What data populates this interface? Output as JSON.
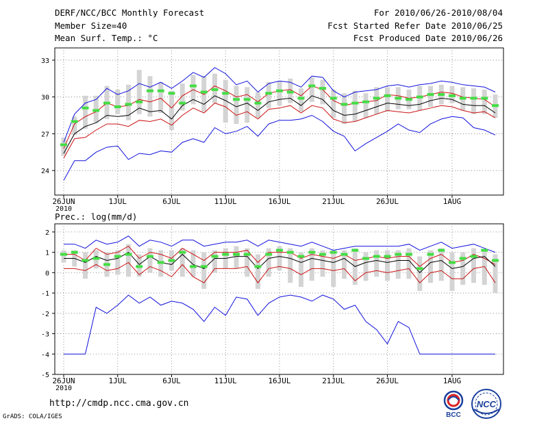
{
  "header": {
    "title": "DERF/NCC/BCC Monthly Forecast",
    "member_size": "Member Size=40",
    "variable": "Mean Surf. Temp.: °C",
    "period": "For 2010/06/26-2010/08/04",
    "refer_date": "Fcst Started Refer Date 2010/06/25",
    "produced_date": "Fcst Produced Date 2010/06/26"
  },
  "footer": {
    "url": "http://cmdp.ncc.cma.gov.cn",
    "grads": "GrADS: COLA/IGES",
    "bcc_logo_text": "BCC",
    "ncc_logo_text": "NCC"
  },
  "colors": {
    "box": "#d4d4d4",
    "median": "#44dd44",
    "mean": "#000000",
    "range": "#1010dd",
    "spread": "#cc1111",
    "grid": "#777777"
  },
  "chart_data": [
    {
      "type": "line",
      "title": "Mean Surf. Temp.: °C",
      "xlabel": "",
      "ylabel": "°C",
      "ylim": [
        22,
        34
      ],
      "yticks": [
        24,
        27,
        30,
        33
      ],
      "xtick_labels": [
        "26JUN",
        "1JUL",
        "6JUL",
        "11JUL",
        "16JUL",
        "21JUL",
        "26JUL",
        "1AUG"
      ],
      "xtick_days": [
        0,
        5,
        10,
        15,
        20,
        25,
        30,
        36
      ],
      "xtick_year": "2010",
      "grid": true,
      "days": 40,
      "series": [
        {
          "name": "max",
          "color_key": "range",
          "values": [
            23.2,
            24.8,
            24.8,
            25.5,
            25.9,
            26.0,
            24.9,
            25.4,
            25.3,
            25.6,
            25.5,
            26.3,
            26.6,
            26.3,
            27.5,
            27.0,
            27.2,
            27.6,
            26.8,
            27.8,
            28.1,
            28.1,
            28.2,
            28.5,
            28.0,
            27.2,
            26.8,
            25.6,
            26.2,
            26.7,
            27.2,
            27.8,
            27.3,
            27.1,
            27.8,
            28.2,
            28.4,
            28.3,
            27.5,
            27.3,
            26.9
          ]
        },
        {
          "name": "top-max",
          "color_key": "range",
          "values": [
            26.3,
            28.6,
            29.5,
            29.8,
            30.7,
            30.2,
            30.5,
            31.1,
            30.8,
            31.2,
            30.7,
            31.3,
            32.0,
            31.6,
            32.4,
            31.9,
            31.0,
            31.3,
            30.4,
            31.1,
            31.3,
            31.2,
            30.8,
            31.7,
            31.6,
            30.5,
            30.0,
            30.4,
            30.5,
            30.6,
            30.9,
            31.0,
            30.8,
            31.0,
            31.1,
            31.3,
            31.2,
            31.0,
            30.9,
            30.8,
            30.4
          ]
        },
        {
          "name": "upper",
          "color_key": "spread",
          "values": [
            25.8,
            27.8,
            28.4,
            28.8,
            29.5,
            29.2,
            29.3,
            29.8,
            29.6,
            29.9,
            29.1,
            30.1,
            30.6,
            30.2,
            30.9,
            30.5,
            30.0,
            30.2,
            29.6,
            30.3,
            30.5,
            30.6,
            30.1,
            30.9,
            30.6,
            29.7,
            29.3,
            29.5,
            29.6,
            29.7,
            30.2,
            30.1,
            29.9,
            30.0,
            30.2,
            30.4,
            30.3,
            30.0,
            29.9,
            29.8,
            29.2
          ]
        },
        {
          "name": "mean",
          "color_key": "mean",
          "values": [
            25.4,
            27.0,
            27.6,
            27.9,
            28.5,
            28.4,
            28.5,
            29.1,
            28.8,
            28.9,
            28.2,
            29.3,
            29.8,
            29.4,
            30.1,
            29.7,
            29.2,
            29.5,
            28.9,
            29.6,
            29.8,
            29.9,
            29.3,
            30.1,
            29.8,
            28.9,
            28.5,
            28.6,
            28.9,
            29.2,
            29.5,
            29.4,
            29.3,
            29.4,
            29.7,
            29.9,
            29.8,
            29.4,
            29.3,
            29.3,
            28.7
          ]
        },
        {
          "name": "lower",
          "color_key": "spread",
          "values": [
            25.0,
            26.6,
            26.7,
            27.3,
            27.8,
            27.8,
            27.6,
            28.1,
            28.0,
            28.2,
            27.7,
            28.5,
            29.1,
            28.7,
            29.5,
            29.2,
            28.5,
            28.8,
            28.2,
            29.0,
            29.1,
            29.3,
            28.7,
            29.3,
            29.1,
            28.2,
            27.9,
            28.0,
            28.3,
            28.6,
            28.9,
            28.8,
            28.7,
            28.9,
            29.1,
            29.3,
            29.2,
            28.9,
            28.7,
            28.8,
            28.3
          ]
        }
      ],
      "median": [
        26.1,
        28.0,
        29.1,
        28.9,
        29.5,
        29.2,
        29.4,
        29.6,
        30.5,
        30.5,
        30.3,
        29.5,
        30.9,
        30.4,
        30.6,
        30.3,
        29.8,
        29.8,
        29.5,
        30.3,
        30.5,
        30.4,
        29.9,
        30.9,
        30.7,
        29.9,
        29.4,
        29.5,
        29.6,
        29.9,
        30.1,
        29.9,
        29.8,
        30.0,
        30.2,
        30.2,
        30.1,
        29.9,
        29.9,
        29.9,
        29.3
      ],
      "box_low": [
        25.2,
        26.9,
        27.4,
        27.9,
        28.2,
        28.6,
        28.1,
        28.6,
        28.4,
        28.7,
        27.3,
        28.9,
        29.4,
        28.8,
        29.5,
        27.9,
        27.8,
        27.9,
        28.3,
        29.1,
        29.3,
        29.5,
        28.8,
        29.6,
        29.4,
        28.3,
        27.8,
        28.0,
        28.3,
        28.6,
        28.8,
        29.0,
        29.0,
        28.9,
        29.2,
        29.4,
        29.5,
        28.9,
        28.6,
        28.6,
        28.3
      ],
      "box_high": [
        26.7,
        28.4,
        30.1,
        30.1,
        30.9,
        30.6,
        31.0,
        32.2,
        31.7,
        31.2,
        30.5,
        31.1,
        31.8,
        31.7,
        31.9,
        31.4,
        30.9,
        30.8,
        30.4,
        31.2,
        31.3,
        31.5,
        30.7,
        31.6,
        31.4,
        30.6,
        30.3,
        30.5,
        30.3,
        30.8,
        30.8,
        30.8,
        30.6,
        30.9,
        30.9,
        31.0,
        30.9,
        30.8,
        30.7,
        30.6,
        30.2
      ]
    },
    {
      "type": "line",
      "title": "Prec.: log(mm/d)",
      "xlabel": "",
      "ylabel": "log(mm/d)",
      "ylim": [
        -5,
        2.4
      ],
      "yticks": [
        -5,
        -4,
        -3,
        -2,
        -1,
        0,
        1,
        2
      ],
      "xtick_labels": [
        "26JUN",
        "1JUL",
        "6JUL",
        "11JUL",
        "16JUL",
        "21JUL",
        "26JUL",
        "1AUG"
      ],
      "xtick_days": [
        0,
        5,
        10,
        15,
        20,
        25,
        30,
        36
      ],
      "xtick_year": "2010",
      "grid": true,
      "days": 40,
      "series": [
        {
          "name": "min",
          "color_key": "range",
          "values": [
            -4.0,
            -4.0,
            -4.0,
            -1.7,
            -2.0,
            -1.6,
            -1.1,
            -1.5,
            -1.2,
            -1.6,
            -1.4,
            -1.5,
            -1.8,
            -2.4,
            -1.7,
            -2.1,
            -1.2,
            -1.3,
            -2.1,
            -1.5,
            -1.2,
            -1.1,
            -1.2,
            -1.4,
            -1.1,
            -1.3,
            -1.8,
            -1.6,
            -2.4,
            -2.8,
            -3.5,
            -2.4,
            -2.7,
            -4.0,
            -4.0,
            -4.0,
            -4.0,
            -4.0,
            -4.0,
            -4.0,
            -4.0
          ]
        },
        {
          "name": "max",
          "color_key": "range",
          "values": [
            1.4,
            1.4,
            1.2,
            1.6,
            1.4,
            1.5,
            1.8,
            1.3,
            1.6,
            1.5,
            1.3,
            1.6,
            1.6,
            1.3,
            1.4,
            1.5,
            1.5,
            1.6,
            1.3,
            1.6,
            1.5,
            1.4,
            1.3,
            1.5,
            1.3,
            1.1,
            1.2,
            1.3,
            1.3,
            1.3,
            1.3,
            1.3,
            1.4,
            1.1,
            1.3,
            1.5,
            1.2,
            1.3,
            1.4,
            1.2,
            1.0
          ]
        },
        {
          "name": "upper",
          "color_key": "spread",
          "values": [
            0.9,
            0.9,
            0.6,
            1.2,
            0.9,
            1.0,
            1.3,
            0.7,
            1.0,
            0.9,
            0.7,
            1.2,
            0.9,
            0.6,
            1.0,
            1.0,
            1.0,
            1.1,
            0.5,
            1.0,
            1.0,
            1.0,
            0.7,
            0.9,
            0.8,
            0.7,
            0.9,
            0.6,
            0.7,
            0.8,
            0.7,
            0.8,
            0.8,
            0.3,
            0.7,
            0.9,
            0.5,
            0.6,
            0.9,
            0.7,
            0.4
          ]
        },
        {
          "name": "mean",
          "color_key": "mean",
          "values": [
            0.7,
            0.7,
            0.5,
            0.8,
            0.6,
            0.7,
            1.0,
            0.4,
            0.8,
            0.5,
            0.4,
            0.9,
            0.4,
            0.2,
            0.7,
            0.7,
            0.8,
            0.8,
            0.2,
            0.7,
            0.8,
            0.7,
            0.5,
            0.7,
            0.6,
            0.5,
            0.7,
            0.3,
            0.5,
            0.6,
            0.5,
            0.6,
            0.6,
            0.0,
            0.5,
            0.6,
            0.2,
            0.3,
            0.7,
            0.8,
            0.3
          ]
        },
        {
          "name": "lower",
          "color_key": "spread",
          "values": [
            0.2,
            0.2,
            0.1,
            0.4,
            0.1,
            0.2,
            0.5,
            -0.1,
            0.3,
            0.1,
            -0.2,
            0.4,
            -0.2,
            -0.5,
            0.2,
            0.2,
            0.2,
            0.3,
            -0.5,
            0.2,
            0.3,
            0.2,
            -0.1,
            0.2,
            0.2,
            0.1,
            0.2,
            -0.4,
            0.0,
            0.1,
            0.0,
            0.1,
            0.2,
            -0.5,
            0.0,
            0.1,
            -0.3,
            -0.3,
            0.2,
            0.3,
            -0.5
          ]
        }
      ],
      "median": [
        0.9,
        1.0,
        0.6,
        0.7,
        0.4,
        0.8,
        0.9,
        0.3,
        0.8,
        0.5,
        0.6,
        1.0,
        0.3,
        0.3,
        0.8,
        0.9,
        0.9,
        0.9,
        0.3,
        0.9,
        1.1,
        1.0,
        0.8,
        1.0,
        0.9,
        1.0,
        0.9,
        1.1,
        0.7,
        0.8,
        0.8,
        0.9,
        0.9,
        0.2,
        0.9,
        1.1,
        0.5,
        0.7,
        0.8,
        1.1,
        0.6
      ],
      "box_low": [
        0.5,
        0.3,
        -0.3,
        0.2,
        -0.2,
        -0.1,
        -0.2,
        -0.2,
        0.0,
        -0.2,
        0.1,
        -0.2,
        -0.2,
        -0.8,
        0.0,
        0.2,
        0.2,
        -0.2,
        -0.8,
        -0.2,
        0.1,
        -0.5,
        -0.7,
        -0.4,
        -0.2,
        -0.7,
        -0.3,
        -0.6,
        -0.4,
        -0.2,
        -0.4,
        -0.3,
        -0.3,
        -0.9,
        -0.5,
        -0.4,
        -0.9,
        -0.6,
        -0.5,
        -0.6,
        -1.0
      ],
      "box_high": [
        1.1,
        1.1,
        1.0,
        1.1,
        1.0,
        1.1,
        1.4,
        0.9,
        1.2,
        1.1,
        1.1,
        1.2,
        1.1,
        1.0,
        1.1,
        1.2,
        1.3,
        1.2,
        0.9,
        1.2,
        1.3,
        1.2,
        1.0,
        1.2,
        1.1,
        1.1,
        1.1,
        1.2,
        1.0,
        1.1,
        1.1,
        1.1,
        1.2,
        0.8,
        1.1,
        1.2,
        1.0,
        1.0,
        1.2,
        1.1,
        0.9
      ]
    }
  ]
}
